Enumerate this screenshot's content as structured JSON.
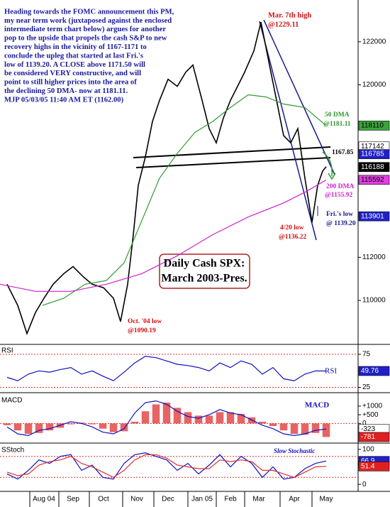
{
  "chart_data": [
    {
      "type": "line",
      "title": [
        "Daily Cash SPX:",
        "March 2003-Pres."
      ],
      "note": [
        "Heading towards the FOMC announcement this PM,",
        "my near term work (juxtaposed against the enclosed",
        "intermediate term chart below) argues for another",
        "pop to the upside that propels the cash S&P to new",
        "recovery highs in the vicinity of 1167-1171 to",
        "conclude the upleg that started at last Fri.'s",
        "low of 1139.20. A CLOSE above 1171.50 will",
        "be considered VERY constructive, and will",
        "point to still higher prices into the area of",
        "the declining 50 DMA- now at 1181.11.",
        "MJP 05/03/05 11:40 AM ET (1162.00)"
      ],
      "annotations": [
        "Mar. 7th high",
        "@1229.11",
        "@1181.11",
        "1167.85",
        "@1155.92",
        "Fri.'s low",
        "@ 1139.20",
        "4/20 low",
        "@1136.22",
        "Oct. '04 low",
        "@1090.19"
      ],
      "xlim": [
        0,
        50.5
      ],
      "ylim": [
        107960,
        123870
      ],
      "yticks": [
        110000,
        112000,
        120000,
        122000
      ],
      "x": [
        1,
        2.5,
        3.8,
        5,
        6.2,
        7.5,
        9,
        10.3,
        11.8,
        13,
        14.6,
        16,
        17,
        18,
        18.8,
        19.5,
        20.5,
        21.5,
        22.5,
        23.7,
        25,
        26.2,
        27.2,
        28.5,
        29.5,
        30.5,
        31.5,
        32.5,
        33.5,
        34.5,
        35.8,
        36.8,
        38,
        39,
        40,
        41,
        42,
        43,
        44,
        44.8,
        45.5,
        46
      ],
      "series": [
        {
          "color": "#000000",
          "values": [
            110750,
            109770,
            108460,
            109440,
            110100,
            110750,
            111245,
            111570,
            111080,
            110750,
            110590,
            110100,
            109020,
            110750,
            113050,
            115340,
            116660,
            118300,
            119280,
            120260,
            119930,
            120590,
            120920,
            119280,
            117970,
            117310,
            118460,
            119280,
            119930,
            120590,
            121570,
            122911,
            120920,
            119280,
            117640,
            117310,
            117970,
            115670,
            113622,
            115340,
            116000,
            116200
          ]
        },
        {
          "name": "50 DMA",
          "color": "#2e9a2e",
          "x": [
            6,
            9,
            12,
            15,
            17.5,
            20,
            22.5,
            25,
            27.5,
            30,
            32.5,
            35,
            37.5,
            40,
            43,
            46
          ],
          "values": [
            109770,
            110100,
            110750,
            110920,
            111740,
            113700,
            115670,
            116820,
            117800,
            118300,
            118950,
            119540,
            119440,
            119110,
            118950,
            118110
          ]
        },
        {
          "name": "200 DMA",
          "color": "#d020d0",
          "x": [
            0,
            5,
            10,
            15,
            20,
            25,
            30,
            35,
            40,
            43,
            46
          ],
          "values": [
            110750,
            110420,
            110420,
            110750,
            111240,
            112070,
            113050,
            113870,
            114520,
            115020,
            115590
          ]
        }
      ],
      "value_boxes": [
        {
          "value": 118110,
          "color": "#3aa53a",
          "text_color": "#000000"
        },
        {
          "value": 117142,
          "color": "#ffffff",
          "text_color": "#000000"
        },
        {
          "value": 116785,
          "color": "#2020c8",
          "text_color": "#ffffff"
        },
        {
          "value": 116188,
          "color": "#000000",
          "text_color": "#ffffff"
        },
        {
          "value": 115592,
          "color": "#e040e0",
          "text_color": "#000000"
        },
        {
          "value": 113901,
          "color": "#2020c8",
          "text_color": "#ffffff"
        }
      ]
    },
    {
      "type": "line",
      "label": "RSI",
      "xlim": [
        0,
        50.5
      ],
      "ylim": [
        18,
        89
      ],
      "yticks": [
        25,
        50,
        75
      ],
      "levels": [
        75,
        25
      ],
      "x": [
        1,
        2.5,
        4,
        5.5,
        7,
        8.5,
        10,
        11.5,
        13,
        14.5,
        16,
        17.5,
        19,
        20.5,
        22,
        23.5,
        25,
        26.5,
        28,
        29.5,
        31,
        32.5,
        34,
        35.5,
        37,
        38.5,
        40,
        41.5,
        43,
        44.5,
        46
      ],
      "series": [
        {
          "name": "RSI",
          "color": "#1010c0",
          "values": [
            40,
            35,
            45,
            50,
            48,
            52,
            55,
            45,
            50,
            42,
            35,
            48,
            62,
            72,
            70,
            65,
            60,
            58,
            55,
            50,
            62,
            55,
            65,
            60,
            45,
            55,
            38,
            35,
            45,
            50,
            49.76
          ]
        }
      ],
      "value_boxes": [
        {
          "value": 49.76,
          "color": "#2020c8",
          "text_color": "#ffffff"
        }
      ]
    },
    {
      "type": "combo",
      "label": "MACD",
      "xlim": [
        0,
        50.5
      ],
      "ylim": [
        -1050,
        1650
      ],
      "yticks": [
        {
          "value": 1000,
          "label": "+1000"
        },
        {
          "value": 500,
          "label": "+500"
        },
        0
      ],
      "levels": [
        0
      ],
      "x": [
        1,
        2.5,
        4,
        5.5,
        7,
        8.5,
        10,
        11.5,
        13,
        14.5,
        16,
        17.5,
        19,
        20.5,
        22,
        23.5,
        25,
        26.5,
        28,
        29.5,
        31,
        32.5,
        34,
        35.5,
        37,
        38.5,
        40,
        41.5,
        43,
        44.5,
        46
      ],
      "series": [
        {
          "style": "bar",
          "color": "#e03030",
          "values": [
            -100,
            -400,
            -600,
            -550,
            -400,
            -250,
            -50,
            50,
            -50,
            -300,
            -500,
            -450,
            100,
            700,
            1100,
            1200,
            900,
            650,
            450,
            450,
            650,
            650,
            550,
            350,
            100,
            -150,
            -400,
            -600,
            -650,
            -550,
            -781
          ]
        },
        {
          "name": "MACD",
          "style": "line",
          "color": "#1010c0",
          "values": [
            -200,
            -600,
            -700,
            -400,
            -300,
            -100,
            100,
            0,
            -200,
            -500,
            -600,
            -300,
            600,
            1200,
            1300,
            1100,
            700,
            400,
            300,
            500,
            800,
            600,
            500,
            200,
            -100,
            -300,
            -600,
            -700,
            -600,
            -400,
            -323
          ]
        }
      ],
      "value_boxes": [
        {
          "value": -323,
          "color": "#ffffff",
          "text_color": "#000000"
        },
        {
          "value": -781,
          "color": "#e02020",
          "text_color": "#ffffff"
        }
      ]
    },
    {
      "type": "line",
      "label": "SStoch",
      "legend": "Slow Stochastic",
      "xlim": [
        0,
        50.5
      ],
      "ylim": [
        -16,
        114
      ],
      "yticks": [
        0,
        50,
        100
      ],
      "levels": [
        80,
        20
      ],
      "x": [
        1,
        2.5,
        4,
        5.5,
        7,
        8.5,
        10,
        11.5,
        13,
        14.5,
        16,
        17.5,
        19,
        20.5,
        22,
        23.5,
        25,
        26.5,
        28,
        29.5,
        31,
        32.5,
        34,
        35.5,
        37,
        38.5,
        40,
        41.5,
        43,
        44.5,
        46
      ],
      "series": [
        {
          "color": "#1010c0",
          "values": [
            30,
            15,
            40,
            70,
            60,
            80,
            85,
            40,
            55,
            20,
            15,
            60,
            85,
            90,
            80,
            70,
            40,
            60,
            30,
            55,
            85,
            50,
            80,
            60,
            20,
            50,
            15,
            20,
            45,
            60,
            66.9
          ]
        },
        {
          "color": "#e03030",
          "values": [
            35,
            25,
            30,
            55,
            65,
            70,
            80,
            60,
            50,
            35,
            20,
            40,
            70,
            85,
            85,
            75,
            55,
            50,
            45,
            45,
            70,
            65,
            70,
            65,
            40,
            40,
            30,
            20,
            35,
            50,
            51.4
          ]
        }
      ],
      "value_boxes": [
        {
          "value": 66.9,
          "color": "#2020c8",
          "text_color": "#ffffff"
        },
        {
          "value": 51.4,
          "color": "#e02020",
          "text_color": "#ffffff"
        }
      ],
      "xticks": [
        {
          "value": 6.2,
          "label": "Aug 04"
        },
        {
          "value": 10.3,
          "label": "Sep"
        },
        {
          "value": 14.6,
          "label": "Oct"
        },
        {
          "value": 19.3,
          "label": "Nov"
        },
        {
          "value": 23.7,
          "label": "Dec"
        },
        {
          "value": 28.5,
          "label": "Jan 05"
        },
        {
          "value": 32.5,
          "label": "Feb"
        },
        {
          "value": 36.5,
          "label": "Mar"
        },
        {
          "value": 41.5,
          "label": "Apr"
        },
        {
          "value": 46,
          "label": "May"
        }
      ]
    }
  ]
}
